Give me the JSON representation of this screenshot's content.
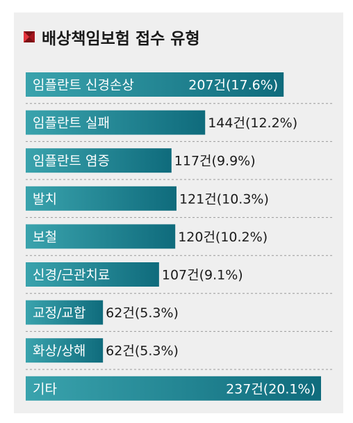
{
  "title": "배상책임보험 접수 유형",
  "title_icon": "red-envelope-icon",
  "colors": {
    "panel_bg": "#efefef",
    "bar_dark": "#0f6b7c",
    "bar_light": "#3aa3ad",
    "divider": "#9a9a9a",
    "text_dark": "#1a1a1a",
    "icon_red": "#c8202a"
  },
  "chart_data": {
    "type": "bar",
    "orientation": "horizontal",
    "title": "배상책임보험 접수 유형",
    "xlabel": "",
    "ylabel": "",
    "grid": false,
    "legend": "none",
    "value_unit": "건",
    "categories": [
      "임플란트 신경손상",
      "임플란트 실패",
      "임플란트 염증",
      "발치",
      "보철",
      "신경/근관치료",
      "교정/교합",
      "화상/상해",
      "기타"
    ],
    "values": [
      207,
      144,
      117,
      121,
      120,
      107,
      62,
      62,
      237
    ],
    "percents": [
      17.6,
      12.2,
      9.9,
      10.3,
      10.2,
      9.1,
      5.3,
      5.3,
      20.1
    ],
    "value_labels": [
      "207건(17.6%)",
      "144건(12.2%)",
      "117건(9.9%)",
      "121건(10.3%)",
      "120건(10.2%)",
      "107건(9.1%)",
      "62건(5.3%)",
      "62건(5.3%)",
      "237건(20.1%)"
    ]
  }
}
